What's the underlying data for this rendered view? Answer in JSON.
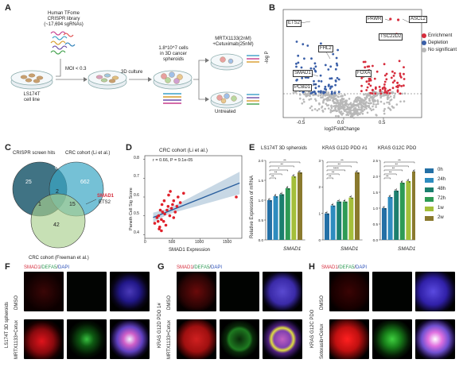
{
  "panels": {
    "A": "A",
    "B": "B",
    "C": "C",
    "D": "D",
    "E": "E",
    "F": "F",
    "G": "G",
    "H": "H"
  },
  "panelA": {
    "library": "Human TFome\nCRISPR library\n(~17,694 sgRNAs)",
    "moi": "MOI < 0.3",
    "cell_line": "LS174T\ncell line",
    "culture": "3D culture",
    "cells": "1.8*10^7 cells\nin 3D cancer\nspheroids",
    "treated": "MRTX1133(2nM)\n+Cetuximab(25nM)",
    "untreated": "Untreated"
  },
  "panelB": {
    "ylabel": "-log P",
    "xlabel": "log2FoldChange",
    "xticks": [
      "-0.5",
      "0.0",
      "0.5"
    ],
    "legend": [
      "Enrichment",
      "Depletion",
      "No significant"
    ],
    "genes_left": [
      "ETS2",
      "FHL2",
      "SMAD1",
      "PCBD1"
    ],
    "genes_right": [
      "PAWR",
      "ASCL2",
      "TSC22D2",
      "FOXA"
    ],
    "colors": {
      "enrich": "#d62c3c",
      "deplete": "#3a5fa8",
      "ns": "#b8b8b8"
    }
  },
  "panelC": {
    "set1": "CRISPR screen hits",
    "set2": "CRC cohort (Li et al.)",
    "set3": "CRC cohort (Freeman et al.)",
    "n_only1": "25",
    "n_12": "6",
    "n_only2": "662",
    "n_all": "2",
    "n_13": "1",
    "n_23": "15",
    "n_only3": "42",
    "hit1": "SMAD1",
    "hit2": "ETS2"
  },
  "panelD": {
    "title": "CRC cohort (Li et al.)",
    "stats": "r = 0.66,  P = 9.1e-05",
    "ylabel": "Paneth Cell Sig Score",
    "xlabel": "SMAD1 Expression",
    "xticks": [
      "0",
      "500",
      "1000",
      "1500"
    ],
    "yticks": [
      "0.8",
      "0.7",
      "0.6",
      "0.5",
      "0.4"
    ]
  },
  "panelE": {
    "ylabel": "Relative Expression of mRNA",
    "gene": "SMAD1",
    "groups": [
      {
        "title": "LS174T 3D spheroids",
        "yticks": [
          "2.0",
          "1.5",
          "1.0",
          "0.5",
          "0.0"
        ],
        "sig": [
          "**",
          "**",
          "*",
          "**",
          "**"
        ]
      },
      {
        "title": "KRAS G12D PDO #1",
        "yticks": [
          "3",
          "2",
          "1",
          "0"
        ],
        "sig": [
          "**",
          "**",
          "****",
          "**",
          "**"
        ]
      },
      {
        "title": "KRAS G12C PDO",
        "yticks": [
          "2.5",
          "2.0",
          "1.5",
          "1.0",
          "0.5",
          "0.0"
        ],
        "sig": [
          "**",
          "**",
          "**",
          "**",
          "**"
        ]
      }
    ],
    "legend": [
      "0h",
      "24h",
      "48h",
      "72h",
      "1w",
      "2w"
    ],
    "colors": [
      "#2470a6",
      "#2e8cbf",
      "#1b7f6e",
      "#2e9b55",
      "#a4bf3a",
      "#8a7a2e"
    ]
  },
  "chart_data": [
    {
      "type": "scatter",
      "title": "CRC cohort (Li et al.)",
      "xlabel": "SMAD1 Expression",
      "ylabel": "Paneth Cell Sig Score",
      "xlim": [
        0,
        1750
      ],
      "ylim": [
        0.38,
        0.82
      ],
      "x": [
        180,
        220,
        250,
        270,
        300,
        320,
        340,
        360,
        380,
        400,
        420,
        450,
        480,
        500,
        520,
        550,
        600,
        640,
        700,
        260,
        300,
        350,
        430,
        520,
        580,
        310,
        280,
        240,
        460,
        1650
      ],
      "y": [
        0.46,
        0.49,
        0.5,
        0.44,
        0.48,
        0.52,
        0.47,
        0.51,
        0.45,
        0.53,
        0.55,
        0.5,
        0.54,
        0.56,
        0.58,
        0.52,
        0.6,
        0.57,
        0.62,
        0.43,
        0.42,
        0.58,
        0.61,
        0.49,
        0.55,
        0.56,
        0.53,
        0.47,
        0.63,
        0.6
      ]
    },
    {
      "type": "bar",
      "title": "LS174T 3D spheroids",
      "categories": [
        "0h",
        "24h",
        "48h",
        "72h",
        "1w",
        "2w"
      ],
      "values": [
        1.0,
        1.1,
        1.15,
        1.3,
        1.6,
        1.7
      ],
      "ylim": [
        0,
        2.0
      ]
    },
    {
      "type": "bar",
      "title": "KRAS G12D PDO #1",
      "categories": [
        "0h",
        "24h",
        "48h",
        "72h",
        "1w",
        "2w"
      ],
      "values": [
        1.0,
        1.3,
        1.45,
        1.45,
        1.6,
        2.55
      ],
      "ylim": [
        0,
        3
      ]
    },
    {
      "type": "bar",
      "title": "KRAS G12C PDO",
      "categories": [
        "0h",
        "24h",
        "48h",
        "72h",
        "1w",
        "2w"
      ],
      "values": [
        1.0,
        1.35,
        1.55,
        1.8,
        1.85,
        2.15
      ],
      "ylim": [
        0,
        2.5
      ]
    }
  ],
  "panelF": {
    "stain": [
      "SMAD1",
      "DEFA5",
      "DAPI"
    ],
    "side": "LS174T 3D spheroids",
    "rows": [
      "DMSO",
      "MRTX1133+Cetux"
    ]
  },
  "panelG": {
    "stain": [
      "SMAD1",
      "DEFA5",
      "DAPI"
    ],
    "side": "KRAS G12D PDO 1#",
    "rows": [
      "DMSO",
      "MRTX1133+Cetux"
    ]
  },
  "panelH": {
    "stain": [
      "SMAD1",
      "DEFA5",
      "DAPI"
    ],
    "side": "KRAS G12C PDO",
    "rows": [
      "DMSO",
      "Sotorasib+Cetux"
    ]
  }
}
